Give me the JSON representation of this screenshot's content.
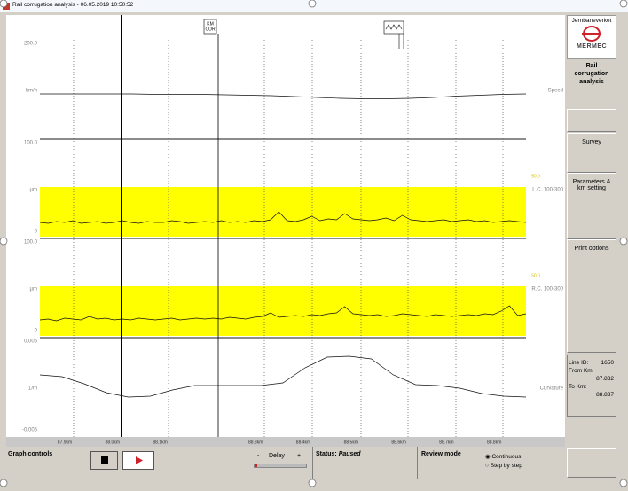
{
  "window_title": "Rail corrugation analysis - 06.05.2019 10:50:52",
  "marker": {
    "line1": "KM",
    "line2": "COR"
  },
  "panels": [
    {
      "name": "Speed",
      "unit": "km/h",
      "ylim": [
        0,
        200
      ],
      "ticks": [
        {
          "value": 200,
          "label": "200.0"
        }
      ],
      "trace": [
        86,
        86,
        86,
        86,
        86,
        85,
        85,
        85,
        84,
        83,
        82,
        80,
        78,
        76,
        75,
        75,
        76,
        78,
        81,
        83,
        85,
        86
      ]
    },
    {
      "name": "L.C. 100-300",
      "unit": "µm",
      "ylim": [
        0,
        100
      ],
      "ticks": [
        {
          "value": 100,
          "label": "100.0"
        },
        0
      ],
      "threshold": {
        "value": 50,
        "label": "50.0"
      },
      "trace": [
        10,
        9,
        11,
        10,
        12,
        9,
        10,
        11,
        9,
        10,
        12,
        10,
        9,
        11,
        10,
        10,
        12,
        11,
        9,
        10,
        11,
        10,
        12,
        10,
        11,
        10,
        12,
        11,
        13,
        22,
        12,
        11,
        13,
        17,
        12,
        14,
        13,
        20,
        14,
        13,
        12,
        13,
        15,
        12,
        18,
        13,
        12,
        11,
        12,
        13,
        11,
        12,
        13,
        11,
        12,
        10,
        11,
        12,
        11,
        10
      ]
    },
    {
      "name": "R.C. 100-300",
      "unit": "µm",
      "ylim": [
        0,
        100
      ],
      "ticks": [
        {
          "value": 100,
          "label": "100.0"
        },
        0
      ],
      "threshold": {
        "value": 50,
        "label": "50.0"
      },
      "trace": [
        12,
        13,
        11,
        14,
        13,
        12,
        16,
        13,
        14,
        12,
        13,
        12,
        14,
        13,
        12,
        13,
        14,
        12,
        13,
        14,
        13,
        14,
        13,
        15,
        14,
        13,
        15,
        16,
        20,
        15,
        16,
        17,
        16,
        18,
        17,
        19,
        20,
        27,
        19,
        18,
        17,
        18,
        16,
        17,
        19,
        18,
        17,
        16,
        18,
        17,
        16,
        17,
        18,
        17,
        19,
        18,
        22,
        28,
        17,
        19
      ]
    },
    {
      "name": "Curvature",
      "unit": "1/m",
      "ylim": [
        -0.005,
        0.005
      ],
      "ticks": [
        0.005,
        -0.005
      ],
      "trace": [
        0.0012,
        0.001,
        0.0002,
        -0.0008,
        -0.0013,
        -0.0012,
        -0.0005,
        0,
        0,
        0,
        0,
        0.0003,
        0.002,
        0.0032,
        0.0033,
        0.003,
        0.0012,
        0.0001,
        0,
        -0.0003,
        -0.0009,
        -0.0012,
        -0.0013
      ]
    }
  ],
  "x_labels": [
    "87.9km",
    "88.0km",
    "88.1km",
    null,
    "88.3km",
    "88.4km",
    "88.5km",
    "88.6km",
    "88.7km",
    "88.8km"
  ],
  "sidebar": {
    "brand": "Jernbaneverket",
    "logo": "MERMEC",
    "title": "Rail corrugation analysis",
    "buttons": [
      "Survey",
      "Parameters & km setting",
      "Print options"
    ],
    "info": [
      {
        "label": "Line ID:",
        "value": 1650
      },
      {
        "label": "From Km:",
        "value": 87.832
      },
      {
        "label": "To Km:",
        "value": 88.837
      }
    ]
  },
  "bottom": {
    "graph_controls": "Graph controls",
    "minus": "-",
    "delay": "Delay",
    "plus": "+",
    "status_label": "Status:",
    "status": "Paused",
    "review_mode": "Review mode",
    "options": [
      "Continuous",
      "Step by step"
    ]
  }
}
